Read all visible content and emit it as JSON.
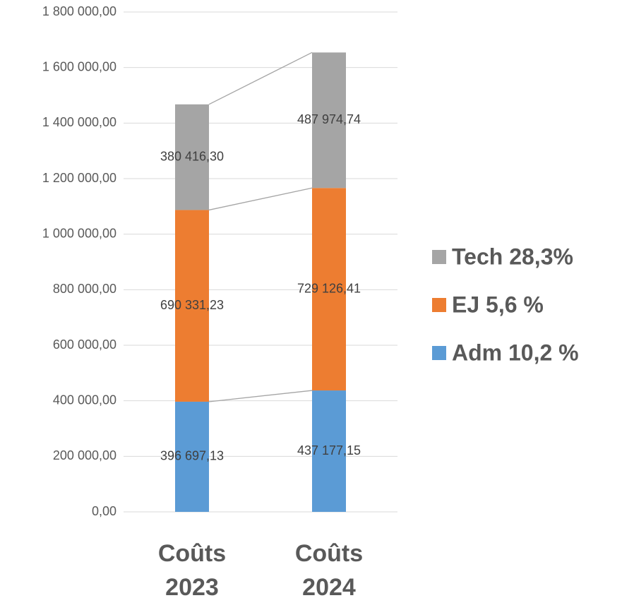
{
  "chart_data": {
    "type": "stacked_bar",
    "categories": [
      "Coûts 2023",
      "Coûts 2024"
    ],
    "series": [
      {
        "name": "Adm 10,2 %",
        "color": "#5b9bd5",
        "values": [
          396697.13,
          437177.15
        ],
        "value_labels": [
          "396 697,13",
          "437 177,15"
        ]
      },
      {
        "name": "EJ 5,6 %",
        "color": "#ed7d31",
        "values": [
          690331.23,
          729126.41
        ],
        "value_labels": [
          "690 331,23",
          "729 126,41"
        ]
      },
      {
        "name": "Tech 28,3%",
        "color": "#a5a5a5",
        "values": [
          380416.3,
          487974.74
        ],
        "value_labels": [
          "380 416,30",
          "487 974,74"
        ]
      }
    ],
    "ylim": [
      0,
      1800000
    ],
    "yticks": [
      {
        "value": 0,
        "label": "0,00"
      },
      {
        "value": 200000,
        "label": "200 000,00"
      },
      {
        "value": 400000,
        "label": "400 000,00"
      },
      {
        "value": 600000,
        "label": "600 000,00"
      },
      {
        "value": 800000,
        "label": "800 000,00"
      },
      {
        "value": 1000000,
        "label": "1 000 000,00"
      },
      {
        "value": 1200000,
        "label": "1 200 000,00"
      },
      {
        "value": 1400000,
        "label": "1 400 000,00"
      },
      {
        "value": 1600000,
        "label": "1 600 000,00"
      },
      {
        "value": 1800000,
        "label": "1 800 000,00"
      }
    ],
    "grid": true,
    "legend": "right",
    "series_lines": true
  }
}
